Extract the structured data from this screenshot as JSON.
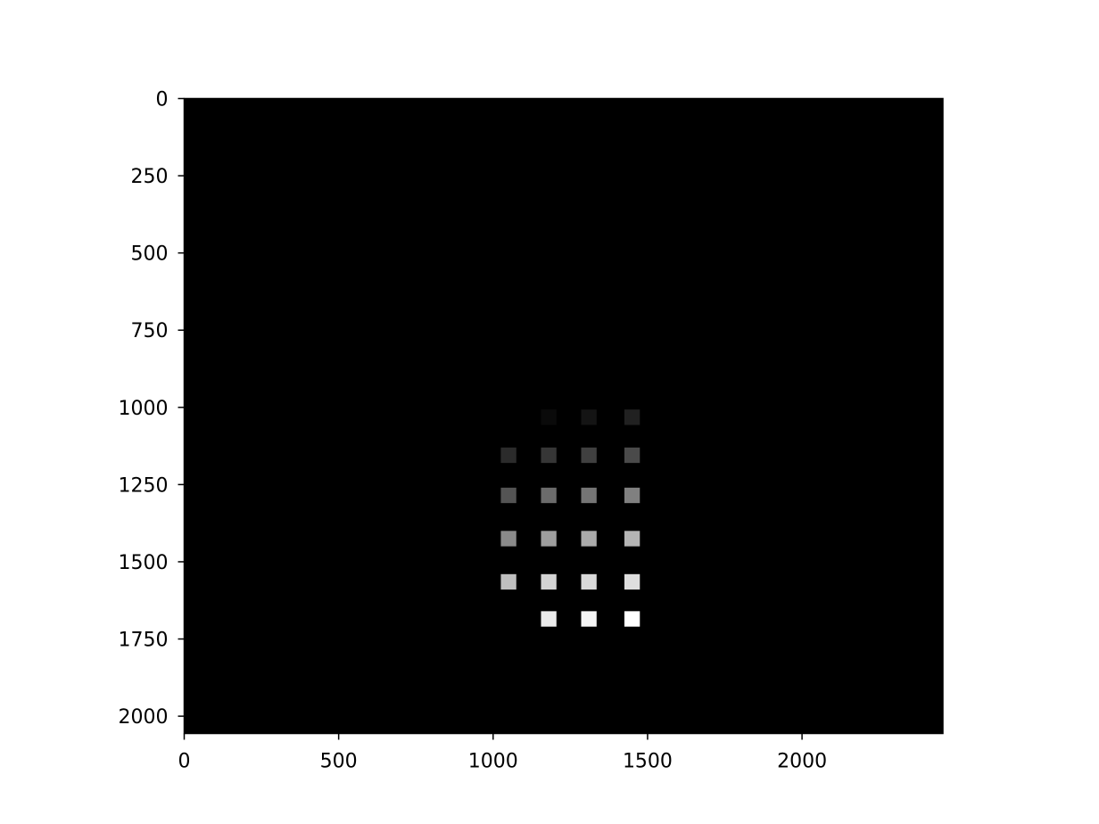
{
  "chart_data": {
    "type": "heatmap",
    "colormap": "gray",
    "background_color": "#000000",
    "title": "",
    "xlabel": "",
    "ylabel": "",
    "xlim": [
      0,
      2456
    ],
    "ylim": [
      2056,
      0
    ],
    "y_axis_inverted": true,
    "x_ticks": [
      0,
      500,
      1000,
      1500,
      2000
    ],
    "y_ticks": [
      0,
      250,
      500,
      750,
      1000,
      1250,
      1500,
      1750,
      2000
    ],
    "x_tick_labels": [
      "0",
      "500",
      "1000",
      "1500",
      "2000"
    ],
    "y_tick_labels": [
      "0",
      "250",
      "500",
      "750",
      "1000",
      "1250",
      "1500",
      "1750",
      "2000"
    ],
    "spot_size": 50,
    "spots": [
      {
        "x": 1180,
        "y": 1032,
        "intensity": 0.04
      },
      {
        "x": 1310,
        "y": 1032,
        "intensity": 0.08
      },
      {
        "x": 1450,
        "y": 1032,
        "intensity": 0.13
      },
      {
        "x": 1050,
        "y": 1155,
        "intensity": 0.17
      },
      {
        "x": 1180,
        "y": 1155,
        "intensity": 0.21
      },
      {
        "x": 1310,
        "y": 1155,
        "intensity": 0.25
      },
      {
        "x": 1450,
        "y": 1155,
        "intensity": 0.29
      },
      {
        "x": 1050,
        "y": 1285,
        "intensity": 0.33
      },
      {
        "x": 1180,
        "y": 1285,
        "intensity": 0.42
      },
      {
        "x": 1310,
        "y": 1285,
        "intensity": 0.46
      },
      {
        "x": 1450,
        "y": 1285,
        "intensity": 0.5
      },
      {
        "x": 1050,
        "y": 1425,
        "intensity": 0.54
      },
      {
        "x": 1180,
        "y": 1425,
        "intensity": 0.62
      },
      {
        "x": 1310,
        "y": 1425,
        "intensity": 0.67
      },
      {
        "x": 1450,
        "y": 1425,
        "intensity": 0.71
      },
      {
        "x": 1050,
        "y": 1565,
        "intensity": 0.75
      },
      {
        "x": 1180,
        "y": 1565,
        "intensity": 0.83
      },
      {
        "x": 1310,
        "y": 1565,
        "intensity": 0.85
      },
      {
        "x": 1450,
        "y": 1565,
        "intensity": 0.87
      },
      {
        "x": 1180,
        "y": 1685,
        "intensity": 0.92
      },
      {
        "x": 1310,
        "y": 1685,
        "intensity": 0.96
      },
      {
        "x": 1450,
        "y": 1685,
        "intensity": 1.0
      }
    ]
  }
}
